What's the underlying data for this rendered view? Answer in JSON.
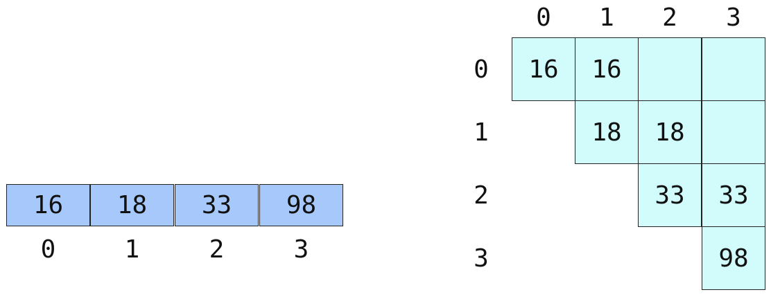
{
  "array": {
    "values": [
      "16",
      "18",
      "33",
      "98"
    ],
    "indices": [
      "0",
      "1",
      "2",
      "3"
    ],
    "cell_color": "#a6c8fb"
  },
  "table": {
    "col_headers": [
      "0",
      "1",
      "2",
      "3"
    ],
    "row_headers": [
      "0",
      "1",
      "2",
      "3"
    ],
    "cell_color": "#d2fcfc",
    "cells": [
      [
        "16",
        "16",
        "",
        ""
      ],
      [
        "18",
        "18",
        ""
      ],
      [
        "33",
        "33"
      ],
      [
        "98"
      ]
    ]
  }
}
